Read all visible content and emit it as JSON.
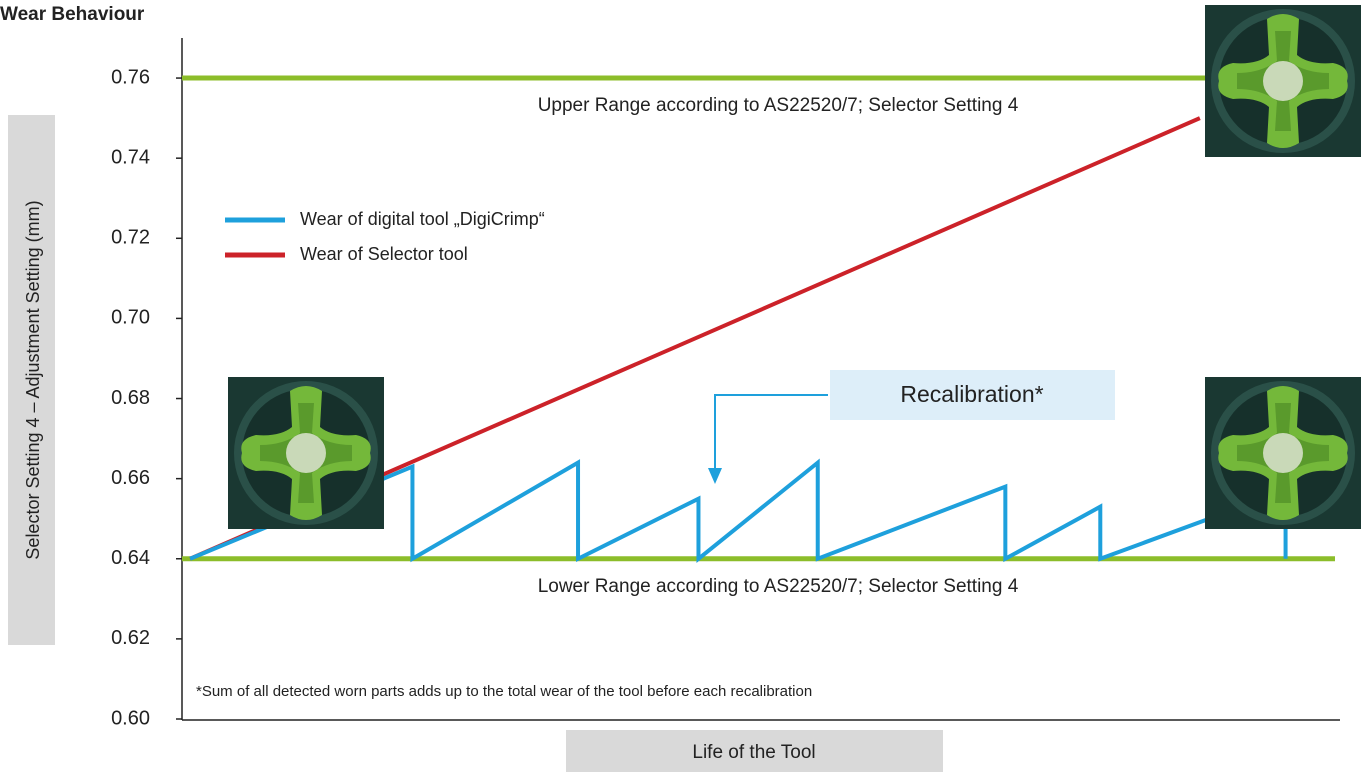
{
  "chart_data": {
    "type": "line",
    "title": "Wear Behaviour",
    "y_label": "Selector Setting 4 – Adjustment Setting (mm)",
    "x_label": "Life of the Tool",
    "xlim": [
      0,
      100
    ],
    "ylim": [
      0.6,
      0.77
    ],
    "yticks": [
      {
        "value": 0.6,
        "label": "0.60"
      },
      0.62,
      0.64,
      0.66,
      0.68,
      {
        "value": 0.7,
        "label": "0.70"
      },
      0.72,
      0.74,
      0.76
    ],
    "series": [
      {
        "name": "Wear of digital tool „DigiCrimp“",
        "color": "#1ea0dc",
        "x": [
          0.7,
          19.9,
          19.9,
          34.2,
          34.2,
          44.6,
          44.6,
          54.9,
          54.9,
          71.1,
          71.1,
          79.3,
          79.3,
          95.3,
          95.3
        ],
        "values": [
          0.64,
          0.663,
          0.64,
          0.664,
          0.64,
          0.655,
          0.64,
          0.664,
          0.64,
          0.658,
          0.64,
          0.653,
          0.64,
          0.657,
          0.64
        ]
      },
      {
        "name": "Wear of Selector tool",
        "color": "#cc2229",
        "x": [
          0.7,
          87.9
        ],
        "values": [
          0.64,
          0.75
        ]
      }
    ],
    "reference_lines": [
      {
        "value": 0.76,
        "label": "Upper Range according to AS22520/7; Selector Setting 4",
        "color": "#8cbd2a"
      },
      {
        "value": 0.64,
        "label": "Lower Range according to AS22520/7; Selector Setting 4",
        "color": "#8cbd2a"
      }
    ],
    "annotations": [
      "Recalibration*",
      "*Sum of all detected worn parts adds up to the total wear of the tool before each recalibration"
    ],
    "legend": "upper left"
  }
}
